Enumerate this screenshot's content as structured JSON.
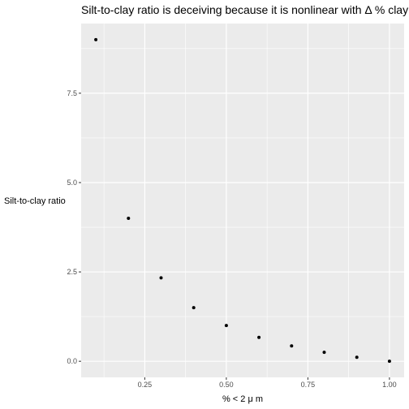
{
  "chart_data": {
    "type": "scatter",
    "title": "Silt-to-clay ratio is deceiving because it is nonlinear with Δ % clay",
    "xlabel": "% < 2 μ m",
    "ylabel": "Silt-to-clay ratio",
    "xlim": [
      0.055,
      1.045
    ],
    "ylim": [
      -0.45,
      9.45
    ],
    "x_major_ticks": [
      {
        "value": 0.25,
        "label": "0.25"
      },
      {
        "value": 0.5,
        "label": "0.50"
      },
      {
        "value": 0.75,
        "label": "0.75"
      },
      {
        "value": 1.0,
        "label": "1.00"
      }
    ],
    "y_major_ticks": [
      {
        "value": 0.0,
        "label": "0.0"
      },
      {
        "value": 2.5,
        "label": "2.5"
      },
      {
        "value": 5.0,
        "label": "5.0"
      },
      {
        "value": 7.5,
        "label": "7.5"
      }
    ],
    "x_minor_ticks": [
      0.125,
      0.375,
      0.625,
      0.875
    ],
    "y_minor_ticks": [
      1.25,
      3.75,
      6.25,
      8.75
    ],
    "grid": true,
    "colors": {
      "panel": "#ebebeb",
      "grid": "#ffffff",
      "point": "#000000"
    },
    "points": [
      {
        "x": 0.1,
        "y": 9.0
      },
      {
        "x": 0.2,
        "y": 4.0
      },
      {
        "x": 0.3,
        "y": 2.333
      },
      {
        "x": 0.4,
        "y": 1.5
      },
      {
        "x": 0.5,
        "y": 1.0
      },
      {
        "x": 0.6,
        "y": 0.667
      },
      {
        "x": 0.7,
        "y": 0.429
      },
      {
        "x": 0.8,
        "y": 0.25
      },
      {
        "x": 0.9,
        "y": 0.111
      },
      {
        "x": 1.0,
        "y": 0.0
      }
    ]
  }
}
